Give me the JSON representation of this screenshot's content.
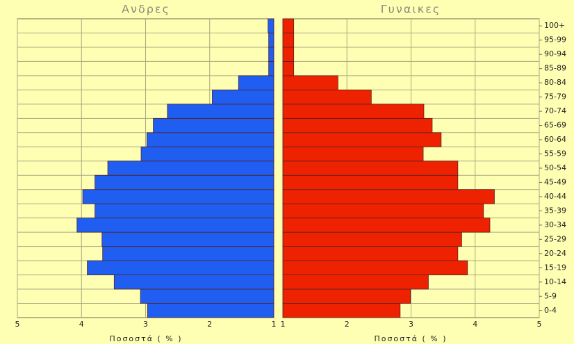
{
  "chart_data": {
    "type": "pyramid",
    "categories": [
      "0-4",
      "5-9",
      "10-14",
      "15-19",
      "20-24",
      "25-29",
      "30-34",
      "35-39",
      "40-44",
      "45-49",
      "50-54",
      "55-59",
      "60-64",
      "65-69",
      "70-74",
      "75-79",
      "80-84",
      "85-89",
      "90-94",
      "95-99",
      "100+"
    ],
    "xlabel": "Ποσοστά ( % )",
    "grid": true,
    "series": [
      {
        "name": "Ανδρες",
        "color": "#1f5ef0",
        "xlim": [
          5,
          1
        ],
        "xticks": [
          5,
          4,
          3,
          2,
          1
        ],
        "values": [
          2.97,
          3.08,
          3.49,
          3.91,
          3.67,
          3.68,
          4.07,
          3.79,
          3.98,
          3.79,
          3.59,
          3.07,
          2.98,
          2.88,
          2.66,
          1.96,
          1.55,
          1.08,
          1.08,
          1.08,
          1.09
        ]
      },
      {
        "name": "Γυναικες",
        "color": "#ee2200",
        "xlim": [
          1,
          5
        ],
        "xticks": [
          1,
          2,
          3,
          4,
          5
        ],
        "values": [
          2.83,
          2.99,
          3.27,
          3.88,
          3.73,
          3.79,
          4.23,
          4.13,
          4.3,
          3.73,
          3.73,
          3.19,
          3.47,
          3.33,
          3.2,
          2.38,
          1.86,
          1.17,
          1.17,
          1.17,
          1.17
        ]
      }
    ]
  }
}
